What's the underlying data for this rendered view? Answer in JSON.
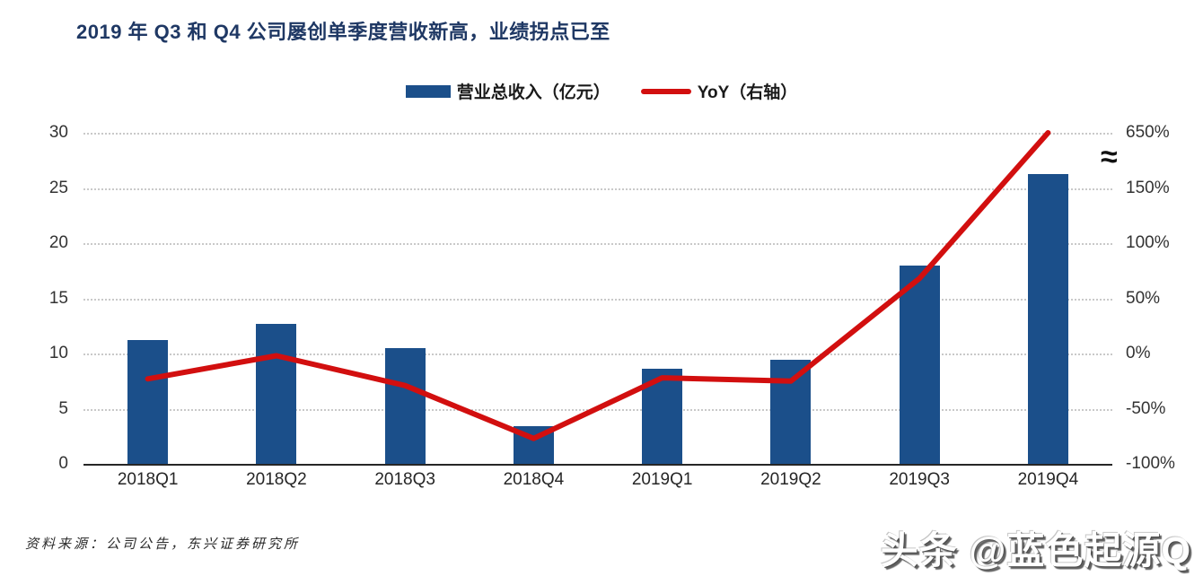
{
  "title": "2019 年 Q3 和 Q4 公司屡创单季度营收新高，业绩拐点已至",
  "legend": [
    {
      "label": "营业总收入（亿元）",
      "marker": "bar-swatch"
    },
    {
      "label": "YoY（右轴）",
      "marker": "line-swatch"
    }
  ],
  "source_note": "资料来源：公司公告，东兴证券研究所",
  "watermark": "头条 @蓝色起源Q",
  "colors": {
    "bar": "#1B4F8A",
    "line": "#D20F0F",
    "title": "#1F3864",
    "grid": "#C9C9C9",
    "axis": "#262626"
  },
  "chart_data": {
    "type": "bar",
    "title": "2019 年 Q3 和 Q4 公司屡创单季度营收新高，业绩拐点已至",
    "categories": [
      "2018Q1",
      "2018Q2",
      "2018Q3",
      "2018Q4",
      "2019Q1",
      "2019Q2",
      "2019Q3",
      "2019Q4"
    ],
    "series": [
      {
        "name": "营业总收入（亿元）",
        "type": "bar",
        "axis": "left",
        "values": [
          11.2,
          12.7,
          10.5,
          3.4,
          8.6,
          9.4,
          18.0,
          26.3
        ]
      },
      {
        "name": "YoY（右轴）",
        "type": "line",
        "axis": "right",
        "unit": "%",
        "values": [
          -23,
          -2,
          -29,
          -77,
          -22,
          -25,
          68,
          650
        ]
      }
    ],
    "left_axis": {
      "ticks": [
        0,
        5,
        10,
        15,
        20,
        25,
        30
      ],
      "range": [
        0,
        30
      ]
    },
    "right_axis": {
      "ticks": [
        {
          "label": "-100%",
          "left_equiv": 0
        },
        {
          "label": "-50%",
          "left_equiv": 5
        },
        {
          "label": "0%",
          "left_equiv": 10
        },
        {
          "label": "50%",
          "left_equiv": 15
        },
        {
          "label": "100%",
          "left_equiv": 20
        },
        {
          "label": "150%",
          "left_equiv": 25
        },
        {
          "label": "650%",
          "left_equiv": 30
        }
      ],
      "break_symbol": "≈",
      "note_break": "axis break between 150% and 650%"
    },
    "grid": "dotted horizontal",
    "legend_position": "top center"
  }
}
